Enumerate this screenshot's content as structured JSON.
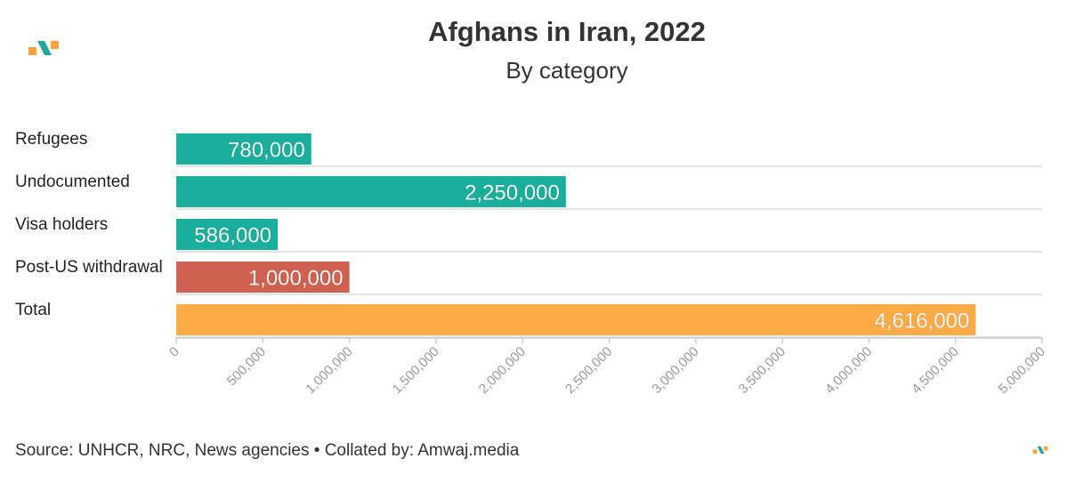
{
  "header": {
    "title": "Afghans in Iran, 2022",
    "subtitle": "By category"
  },
  "footer": {
    "source": "Source: UNHCR, NRC, News agencies • Collated by: Amwaj.media"
  },
  "brand": {
    "logo_icon": "amwaj-logo-icon",
    "colors": {
      "teal": "#1aaf9c",
      "red": "#d0604f",
      "orange": "#fbab45",
      "logo_orange": "#f7a23b",
      "logo_teal": "#20a89b"
    }
  },
  "chart_data": {
    "type": "bar",
    "orientation": "horizontal",
    "title": "Afghans in Iran, 2022",
    "subtitle": "By category",
    "categories": [
      "Refugees",
      "Undocumented",
      "Visa holders",
      "Post-US withdrawal",
      "Total"
    ],
    "values": [
      780000,
      2250000,
      586000,
      1000000,
      4616000
    ],
    "data_labels": [
      "780,000",
      "2,250,000",
      "586,000",
      "1,000,000",
      "4,616,000"
    ],
    "colors": [
      "#1aaf9c",
      "#1aaf9c",
      "#1aaf9c",
      "#d0604f",
      "#fbab45"
    ],
    "xlim": [
      0,
      5000000
    ],
    "xticks": [
      0,
      500000,
      1000000,
      1500000,
      2000000,
      2500000,
      3000000,
      3500000,
      4000000,
      4500000,
      5000000
    ],
    "xtick_labels": [
      "0",
      "500,000",
      "1,000,000",
      "1,500,000",
      "2,000,000",
      "2,500,000",
      "3,000,000",
      "3,500,000",
      "4,000,000",
      "4,500,000",
      "5,000,000"
    ],
    "grid": true,
    "legend": false
  }
}
